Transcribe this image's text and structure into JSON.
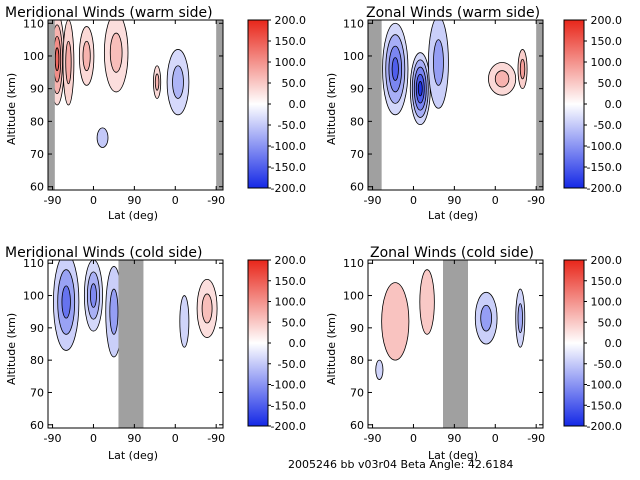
{
  "footer": "2005246 bb v03r04   Beta Angle: 42.6184",
  "colorbar_ticks": [
    "200.0",
    "150.0",
    "100.0",
    "50.0",
    "0.0",
    "-50.0",
    "-100.0",
    "-150.0",
    "-200.0"
  ],
  "colors": {
    "max": "#e8261a",
    "mid": "#ffffff",
    "min": "#1428e6",
    "shade": "#a0a0a0"
  },
  "chart_data": [
    {
      "type": "heatmap",
      "title": "Meridional Winds (warm side)",
      "xlabel": "Lat (deg)",
      "ylabel": "Altitude (km)",
      "x_tick_labels": [
        "-90",
        "0",
        "90",
        "0",
        "-90"
      ],
      "y_ticks": [
        60,
        70,
        80,
        90,
        100,
        110
      ],
      "ylim": [
        59,
        111
      ],
      "colorbar_range": [
        -200,
        200
      ],
      "colorbar_ticks": [
        200,
        150,
        100,
        50,
        0,
        -50,
        -100,
        -150,
        -200
      ],
      "blobs": [
        {
          "lat": -80,
          "alt": 99,
          "v": 140,
          "w": 16,
          "h": 14
        },
        {
          "lat": -55,
          "alt": 98,
          "v": 80,
          "w": 12,
          "h": 13
        },
        {
          "lat": -15,
          "alt": 100,
          "v": 70,
          "w": 16,
          "h": 9
        },
        {
          "lat": 50,
          "alt": 101,
          "v": 60,
          "w": 26,
          "h": 12
        },
        {
          "lat": 20,
          "alt": 75,
          "v": -50,
          "w": 12,
          "h": 3
        },
        {
          "lat": 140,
          "alt": 92,
          "v": 70,
          "w": 8,
          "h": 5
        },
        {
          "lat": 186,
          "alt": 92,
          "v": -70,
          "w": 24,
          "h": 10
        }
      ],
      "shaded_lat_ranges": [
        [
          -100,
          -85
        ],
        [
          270,
          285
        ]
      ]
    },
    {
      "type": "heatmap",
      "title": "Zonal Winds (warm side)",
      "xlabel": "Lat (deg)",
      "ylabel": "Altitude (km)",
      "x_tick_labels": [
        "-90",
        "0",
        "90",
        "0",
        "-90"
      ],
      "y_ticks": [
        60,
        70,
        80,
        90,
        100,
        110
      ],
      "ylim": [
        59,
        111
      ],
      "colorbar_range": [
        -200,
        200
      ],
      "colorbar_ticks": [
        200,
        150,
        100,
        50,
        0,
        -50,
        -100,
        -150,
        -200
      ],
      "blobs": [
        {
          "lat": -40,
          "alt": 96,
          "v": -150,
          "w": 28,
          "h": 14
        },
        {
          "lat": 15,
          "alt": 90,
          "v": -190,
          "w": 22,
          "h": 11
        },
        {
          "lat": 55,
          "alt": 98,
          "v": -90,
          "w": 22,
          "h": 14
        },
        {
          "lat": 195,
          "alt": 93,
          "v": 70,
          "w": 30,
          "h": 5
        },
        {
          "lat": 240,
          "alt": 96,
          "v": 90,
          "w": 10,
          "h": 6
        }
      ],
      "shaded_lat_ranges": [
        [
          -100,
          -70
        ],
        [
          270,
          285
        ]
      ]
    },
    {
      "type": "heatmap",
      "title": "Meridional Winds (cold side)",
      "xlabel": "Lat (deg)",
      "ylabel": "Altitude (km)",
      "x_tick_labels": [
        "-90",
        "0",
        "90",
        "0",
        "-90"
      ],
      "y_ticks": [
        60,
        70,
        80,
        90,
        100,
        110
      ],
      "ylim": [
        59,
        111
      ],
      "colorbar_range": [
        -200,
        200
      ],
      "colorbar_ticks": [
        200,
        150,
        100,
        50,
        0,
        -50,
        -100,
        -150,
        -200
      ],
      "blobs": [
        {
          "lat": -60,
          "alt": 98,
          "v": -130,
          "w": 28,
          "h": 15
        },
        {
          "lat": 0,
          "alt": 100,
          "v": -110,
          "w": 20,
          "h": 11
        },
        {
          "lat": 45,
          "alt": 95,
          "v": -90,
          "w": 18,
          "h": 14
        },
        {
          "lat": 200,
          "alt": 92,
          "v": -40,
          "w": 10,
          "h": 8
        },
        {
          "lat": 250,
          "alt": 96,
          "v": 60,
          "w": 22,
          "h": 9
        }
      ],
      "shaded_lat_ranges": [
        [
          55,
          110
        ]
      ]
    },
    {
      "type": "heatmap",
      "title": "Zonal Winds (cold side)",
      "xlabel": "Lat (deg)",
      "ylabel": "Altitude (km)",
      "x_tick_labels": [
        "-90",
        "0",
        "90",
        "0",
        "-90"
      ],
      "y_ticks": [
        60,
        70,
        80,
        90,
        100,
        110
      ],
      "ylim": [
        59,
        111
      ],
      "colorbar_range": [
        -200,
        200
      ],
      "colorbar_ticks": [
        200,
        150,
        100,
        50,
        0,
        -50,
        -100,
        -150,
        -200
      ],
      "blobs": [
        {
          "lat": -40,
          "alt": 92,
          "v": 55,
          "w": 30,
          "h": 12
        },
        {
          "lat": 30,
          "alt": 98,
          "v": 50,
          "w": 16,
          "h": 10
        },
        {
          "lat": -75,
          "alt": 77,
          "v": -40,
          "w": 8,
          "h": 3
        },
        {
          "lat": 160,
          "alt": 93,
          "v": -90,
          "w": 24,
          "h": 8
        },
        {
          "lat": 235,
          "alt": 93,
          "v": -80,
          "w": 10,
          "h": 9
        }
      ],
      "shaded_lat_ranges": [
        [
          65,
          120
        ]
      ]
    }
  ]
}
